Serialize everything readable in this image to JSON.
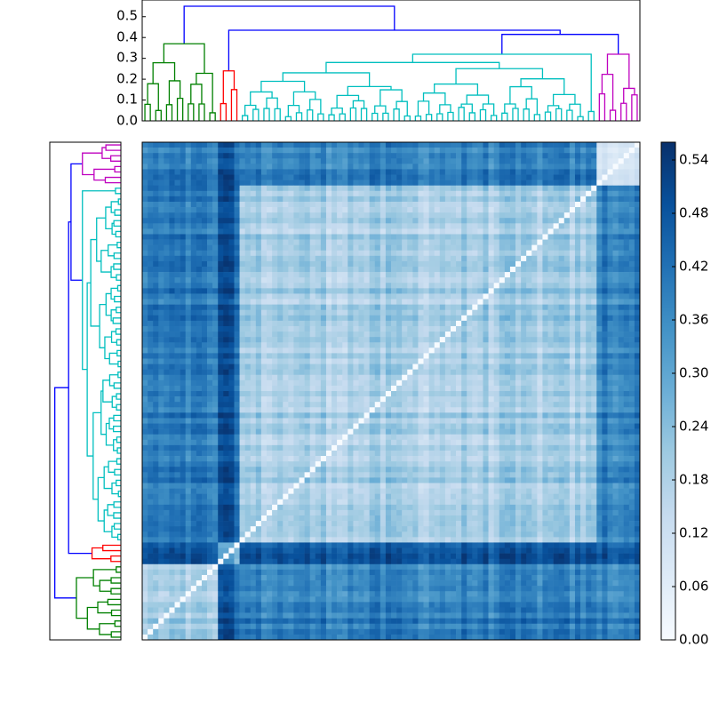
{
  "chart_data": [
    {
      "type": "dendrogram",
      "panel": "top",
      "orientation": "vertical",
      "ylim": [
        0,
        0.58
      ],
      "yticks": [
        "0.0",
        "0.1",
        "0.2",
        "0.3",
        "0.4",
        "0.5"
      ],
      "root_height": 0.55,
      "clusters": [
        {
          "color": "#008000",
          "merge_height": 0.37
        },
        {
          "color": "#ff0000",
          "merge_height": 0.24
        },
        {
          "color": "#00bfbf",
          "merge_height": 0.32
        },
        {
          "color": "#bf00bf",
          "merge_height": 0.32
        }
      ]
    },
    {
      "type": "dendrogram",
      "panel": "left",
      "orientation": "horizontal",
      "clusters": [
        {
          "color": "#bf00bf"
        },
        {
          "color": "#00bfbf"
        },
        {
          "color": "#ff0000"
        },
        {
          "color": "#008000"
        }
      ]
    },
    {
      "type": "heatmap",
      "panel": "main",
      "n": 92,
      "value_range": [
        0,
        0.56
      ],
      "diagonal": 0.0,
      "cluster_sizes": [
        14,
        4,
        66,
        8
      ],
      "typical_within_cluster_distance": 0.1,
      "typical_between_cluster_distance": 0.3,
      "max_distance": 0.55
    },
    {
      "type": "colorbar",
      "panel": "right",
      "colormap": "Blues",
      "range": [
        0,
        0.56
      ],
      "ticks": [
        "0.00",
        "0.06",
        "0.12",
        "0.18",
        "0.24",
        "0.30",
        "0.36",
        "0.42",
        "0.48",
        "0.54"
      ],
      "colors": [
        "#f7fbff",
        "#deebf7",
        "#c6dbef",
        "#9ecae1",
        "#6baed6",
        "#4292c6",
        "#2171b5",
        "#08519c",
        "#08306b"
      ]
    }
  ]
}
